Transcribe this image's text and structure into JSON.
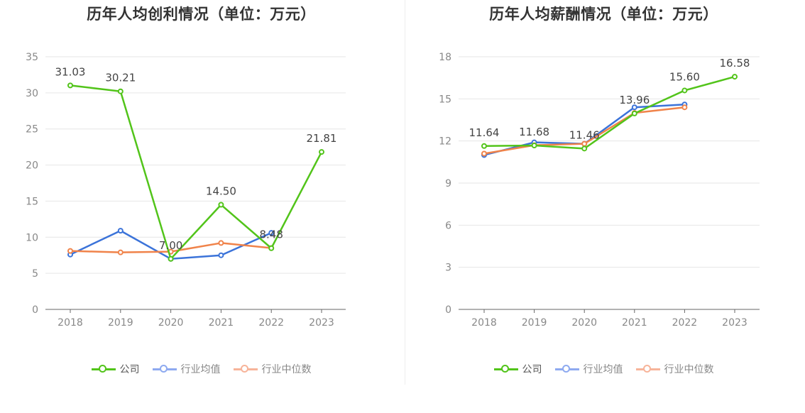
{
  "chart_data": [
    {
      "type": "line",
      "title": "历年人均创利情况（单位：万元）",
      "categories": [
        "2018",
        "2019",
        "2020",
        "2021",
        "2022",
        "2023"
      ],
      "ylim": [
        0,
        35
      ],
      "yticks": [
        0,
        5,
        10,
        15,
        20,
        25,
        30,
        35
      ],
      "grid": true,
      "legend_position": "bottom",
      "series": [
        {
          "name": "公司",
          "color": "#52c41a",
          "values": [
            31.03,
            30.21,
            7.0,
            14.5,
            8.48,
            21.81
          ],
          "labels": [
            "31.03",
            "30.21",
            "7.00",
            "14.50",
            "8.48",
            "21.81"
          ]
        },
        {
          "name": "行业均值",
          "color": "#3b73d9",
          "values": [
            7.6,
            10.9,
            7.0,
            7.5,
            10.6,
            null
          ]
        },
        {
          "name": "行业中位数",
          "color": "#f0834a",
          "values": [
            8.1,
            7.9,
            8.0,
            9.2,
            8.5,
            null
          ]
        }
      ]
    },
    {
      "type": "line",
      "title": "历年人均薪酬情况（单位：万元）",
      "categories": [
        "2018",
        "2019",
        "2020",
        "2021",
        "2022",
        "2023"
      ],
      "ylim": [
        0,
        18
      ],
      "yticks": [
        0,
        3,
        6,
        9,
        12,
        15,
        18
      ],
      "grid": true,
      "legend_position": "bottom",
      "series": [
        {
          "name": "公司",
          "color": "#52c41a",
          "values": [
            11.64,
            11.68,
            11.46,
            13.96,
            15.6,
            16.58
          ],
          "labels": [
            "11.64",
            "11.68",
            "11.46",
            "13.96",
            "15.60",
            "16.58"
          ]
        },
        {
          "name": "行业均值",
          "color": "#3b73d9",
          "values": [
            11.0,
            11.9,
            11.8,
            14.4,
            14.6,
            null
          ]
        },
        {
          "name": "行业中位数",
          "color": "#f0834a",
          "values": [
            11.1,
            11.7,
            11.8,
            14.0,
            14.4,
            null
          ]
        }
      ]
    }
  ],
  "legend": {
    "items": [
      {
        "label": "公司",
        "color": "#52c41a",
        "active": true
      },
      {
        "label": "行业均值",
        "color": "#3b73d9",
        "light": "#8eaaf0",
        "active": false
      },
      {
        "label": "行业中位数",
        "color": "#f0834a",
        "light": "#f7b49a",
        "active": false
      }
    ]
  }
}
